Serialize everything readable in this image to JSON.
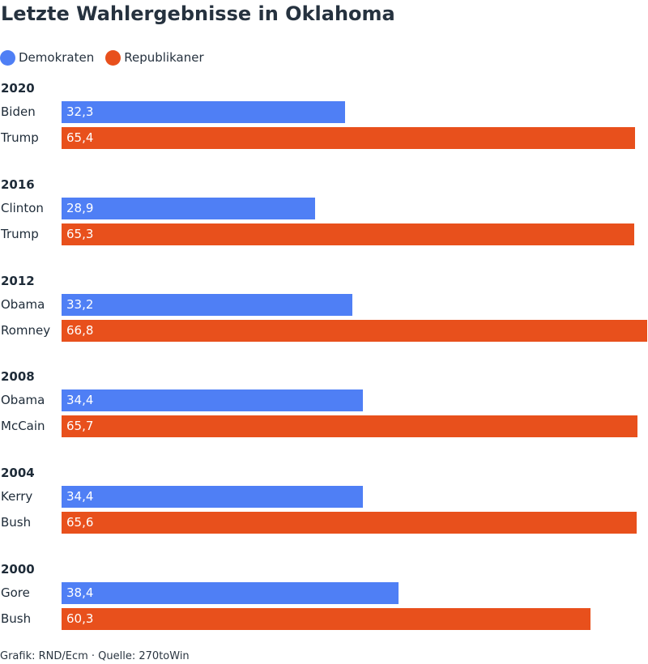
{
  "title": "Letzte Wahlergebnisse in Oklahoma",
  "legend": [
    {
      "label": "Demokraten",
      "color": "#4f7ff5"
    },
    {
      "label": "Republikaner",
      "color": "#e8501c"
    }
  ],
  "footer": "Grafik: RND/Ecm · Quelle: 270toWin",
  "chart_data": {
    "type": "bar",
    "orientation": "horizontal",
    "title": "Letzte Wahlergebnisse in Oklahoma",
    "xlim": [
      0,
      66.8
    ],
    "legend_position": "top-left",
    "grid": false,
    "series": [
      {
        "name": "Demokraten",
        "color": "#4f7ff5"
      },
      {
        "name": "Republikaner",
        "color": "#e8501c"
      }
    ],
    "groups": [
      {
        "year": "2020",
        "rows": [
          {
            "candidate": "Biden",
            "party": "Demokraten",
            "value": 32.3,
            "label": "32,3"
          },
          {
            "candidate": "Trump",
            "party": "Republikaner",
            "value": 65.4,
            "label": "65,4"
          }
        ]
      },
      {
        "year": "2016",
        "rows": [
          {
            "candidate": "Clinton",
            "party": "Demokraten",
            "value": 28.9,
            "label": "28,9"
          },
          {
            "candidate": "Trump",
            "party": "Republikaner",
            "value": 65.3,
            "label": "65,3"
          }
        ]
      },
      {
        "year": "2012",
        "rows": [
          {
            "candidate": "Obama",
            "party": "Demokraten",
            "value": 33.2,
            "label": "33,2"
          },
          {
            "candidate": "Romney",
            "party": "Republikaner",
            "value": 66.8,
            "label": "66,8"
          }
        ]
      },
      {
        "year": "2008",
        "rows": [
          {
            "candidate": "Obama",
            "party": "Demokraten",
            "value": 34.4,
            "label": "34,4"
          },
          {
            "candidate": "McCain",
            "party": "Republikaner",
            "value": 65.7,
            "label": "65,7"
          }
        ]
      },
      {
        "year": "2004",
        "rows": [
          {
            "candidate": "Kerry",
            "party": "Demokraten",
            "value": 34.4,
            "label": "34,4"
          },
          {
            "candidate": "Bush",
            "party": "Republikaner",
            "value": 65.6,
            "label": "65,6"
          }
        ]
      },
      {
        "year": "2000",
        "rows": [
          {
            "candidate": "Gore",
            "party": "Demokraten",
            "value": 38.4,
            "label": "38,4"
          },
          {
            "candidate": "Bush",
            "party": "Republikaner",
            "value": 60.3,
            "label": "60,3"
          }
        ]
      }
    ]
  }
}
